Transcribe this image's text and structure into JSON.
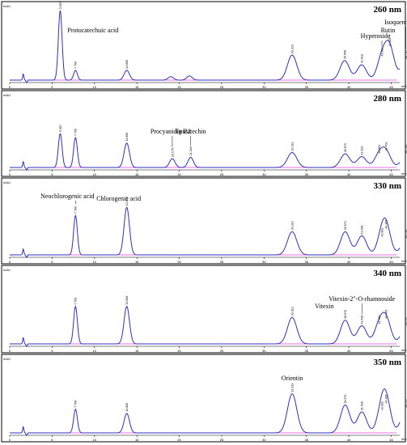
{
  "chart_data": [
    {
      "type": "line",
      "title": "260 nm",
      "y_unit": "mAU",
      "x_unit": "min",
      "xlim": [
        0,
        46
      ],
      "x_ticks": [
        "0",
        "5",
        "10",
        "15",
        "20",
        "25",
        "30",
        "35",
        "40",
        "45"
      ],
      "peaks": [
        {
          "rt": 5.957,
          "height": 1.0,
          "label": "5.957",
          "compound": "Protocatechuic acid"
        },
        {
          "rt": 7.76,
          "height": 0.14,
          "label": "7.760",
          "compound": ""
        },
        {
          "rt": 13.806,
          "height": 0.14,
          "label": "13.806",
          "compound": ""
        },
        {
          "rt": 19.0,
          "height": 0.05,
          "label": "",
          "compound": ""
        },
        {
          "rt": 21.2,
          "height": 0.06,
          "label": "",
          "compound": ""
        },
        {
          "rt": 33.313,
          "height": 0.36,
          "label": "33.313",
          "compound": ""
        },
        {
          "rt": 39.508,
          "height": 0.28,
          "label": "39.508",
          "compound": ""
        },
        {
          "rt": 41.518,
          "height": 0.22,
          "label": "41.518",
          "compound": ""
        },
        {
          "rt": 43.902,
          "height": 0.32,
          "label": "43.902",
          "compound": "Hyperoside"
        },
        {
          "rt": 44.805,
          "height": 0.46,
          "label": "44.805",
          "compound": "Rutin"
        },
        {
          "rt": 46.717,
          "height": 0.28,
          "label": "46.717",
          "compound": "Isoquercitrin"
        }
      ]
    },
    {
      "type": "line",
      "title": "280 nm",
      "y_unit": "mAU",
      "x_unit": "min",
      "xlim": [
        0,
        46
      ],
      "x_ticks": [
        "0",
        "5",
        "10",
        "15",
        "20",
        "25",
        "30",
        "35",
        "40",
        "45"
      ],
      "peaks": [
        {
          "rt": 5.957,
          "height": 0.5,
          "label": "5.957",
          "compound": ""
        },
        {
          "rt": 7.76,
          "height": 0.44,
          "label": "7.760",
          "compound": ""
        },
        {
          "rt": 13.806,
          "height": 0.36,
          "label": "13.806",
          "compound": ""
        },
        {
          "rt": 19.176,
          "height": 0.13,
          "label": "19.176",
          "compound": "Procyanidin B2"
        },
        {
          "rt": 21.346,
          "height": 0.15,
          "label": "21.346",
          "compound": "Epicatechin"
        },
        {
          "rt": 33.313,
          "height": 0.22,
          "label": "33.313",
          "compound": ""
        },
        {
          "rt": 39.57,
          "height": 0.2,
          "label": "39.570",
          "compound": ""
        },
        {
          "rt": 41.522,
          "height": 0.16,
          "label": "41.522",
          "compound": ""
        },
        {
          "rt": 43.564,
          "height": 0.18,
          "label": "43.564",
          "compound": ""
        },
        {
          "rt": 44.402,
          "height": 0.22,
          "label": "44.402",
          "compound": ""
        },
        {
          "rt": 46.733,
          "height": 0.18,
          "label": "46.733",
          "compound": ""
        }
      ]
    },
    {
      "type": "line",
      "title": "330 nm",
      "y_unit": "mAU",
      "x_unit": "min",
      "xlim": [
        0,
        46
      ],
      "x_ticks": [
        "0",
        "5",
        "10",
        "15",
        "20",
        "25",
        "30",
        "35",
        "40",
        "45"
      ],
      "peaks": [
        {
          "rt": 7.76,
          "height": 0.58,
          "label": "7.760",
          "compound": "Neochlorogenic acid"
        },
        {
          "rt": 13.806,
          "height": 0.7,
          "label": "13.806",
          "compound": "Chlorogenic acid"
        },
        {
          "rt": 33.313,
          "height": 0.34,
          "label": "33.313",
          "compound": ""
        },
        {
          "rt": 39.57,
          "height": 0.34,
          "label": "39.570",
          "compound": ""
        },
        {
          "rt": 41.536,
          "height": 0.28,
          "label": "41.536",
          "compound": ""
        },
        {
          "rt": 43.902,
          "height": 0.24,
          "label": "43.902",
          "compound": ""
        },
        {
          "rt": 44.405,
          "height": 0.36,
          "label": "44.405",
          "compound": ""
        },
        {
          "rt": 46.712,
          "height": 0.22,
          "label": "46.712",
          "compound": ""
        }
      ]
    },
    {
      "type": "line",
      "title": "340 nm",
      "y_unit": "mAU",
      "x_unit": "min",
      "xlim": [
        0,
        46
      ],
      "x_ticks": [
        "0",
        "5",
        "10",
        "15",
        "20",
        "25",
        "30",
        "35",
        "40",
        "45"
      ],
      "peaks": [
        {
          "rt": 7.76,
          "height": 0.54,
          "label": "7.760",
          "compound": ""
        },
        {
          "rt": 13.806,
          "height": 0.54,
          "label": "13.806",
          "compound": ""
        },
        {
          "rt": 33.312,
          "height": 0.38,
          "label": "33.312",
          "compound": ""
        },
        {
          "rt": 39.57,
          "height": 0.34,
          "label": "39.570",
          "compound": "Vitexin"
        },
        {
          "rt": 41.536,
          "height": 0.26,
          "label": "41.536",
          "compound": "Vitexin-2″-O-rhamnoside"
        },
        {
          "rt": 43.564,
          "height": 0.26,
          "label": "43.564",
          "compound": ""
        },
        {
          "rt": 44.405,
          "height": 0.34,
          "label": "44.405",
          "compound": ""
        },
        {
          "rt": 46.717,
          "height": 0.24,
          "label": "46.717",
          "compound": ""
        }
      ]
    },
    {
      "type": "line",
      "title": "350 nm",
      "y_unit": "mAU",
      "x_unit": "min",
      "xlim": [
        0,
        46
      ],
      "x_ticks": [
        "0",
        "5",
        "10",
        "15",
        "20",
        "25",
        "30",
        "35",
        "40",
        "45"
      ],
      "peaks": [
        {
          "rt": 7.76,
          "height": 0.34,
          "label": "7.760",
          "compound": ""
        },
        {
          "rt": 13.806,
          "height": 0.28,
          "label": "13.806",
          "compound": ""
        },
        {
          "rt": 33.313,
          "height": 0.56,
          "label": "33.313",
          "compound": "Orientin"
        },
        {
          "rt": 39.57,
          "height": 0.4,
          "label": "39.570",
          "compound": ""
        },
        {
          "rt": 41.536,
          "height": 0.3,
          "label": "41.536",
          "compound": ""
        },
        {
          "rt": 43.902,
          "height": 0.3,
          "label": "43.902",
          "compound": ""
        },
        {
          "rt": 44.405,
          "height": 0.4,
          "label": "44.405",
          "compound": ""
        },
        {
          "rt": 46.717,
          "height": 0.34,
          "label": "46.717",
          "compound": ""
        }
      ]
    }
  ],
  "colors": {
    "trace": "#3030c0",
    "baseline": "#e040e0",
    "text": "#000000",
    "axis": "#000000"
  }
}
